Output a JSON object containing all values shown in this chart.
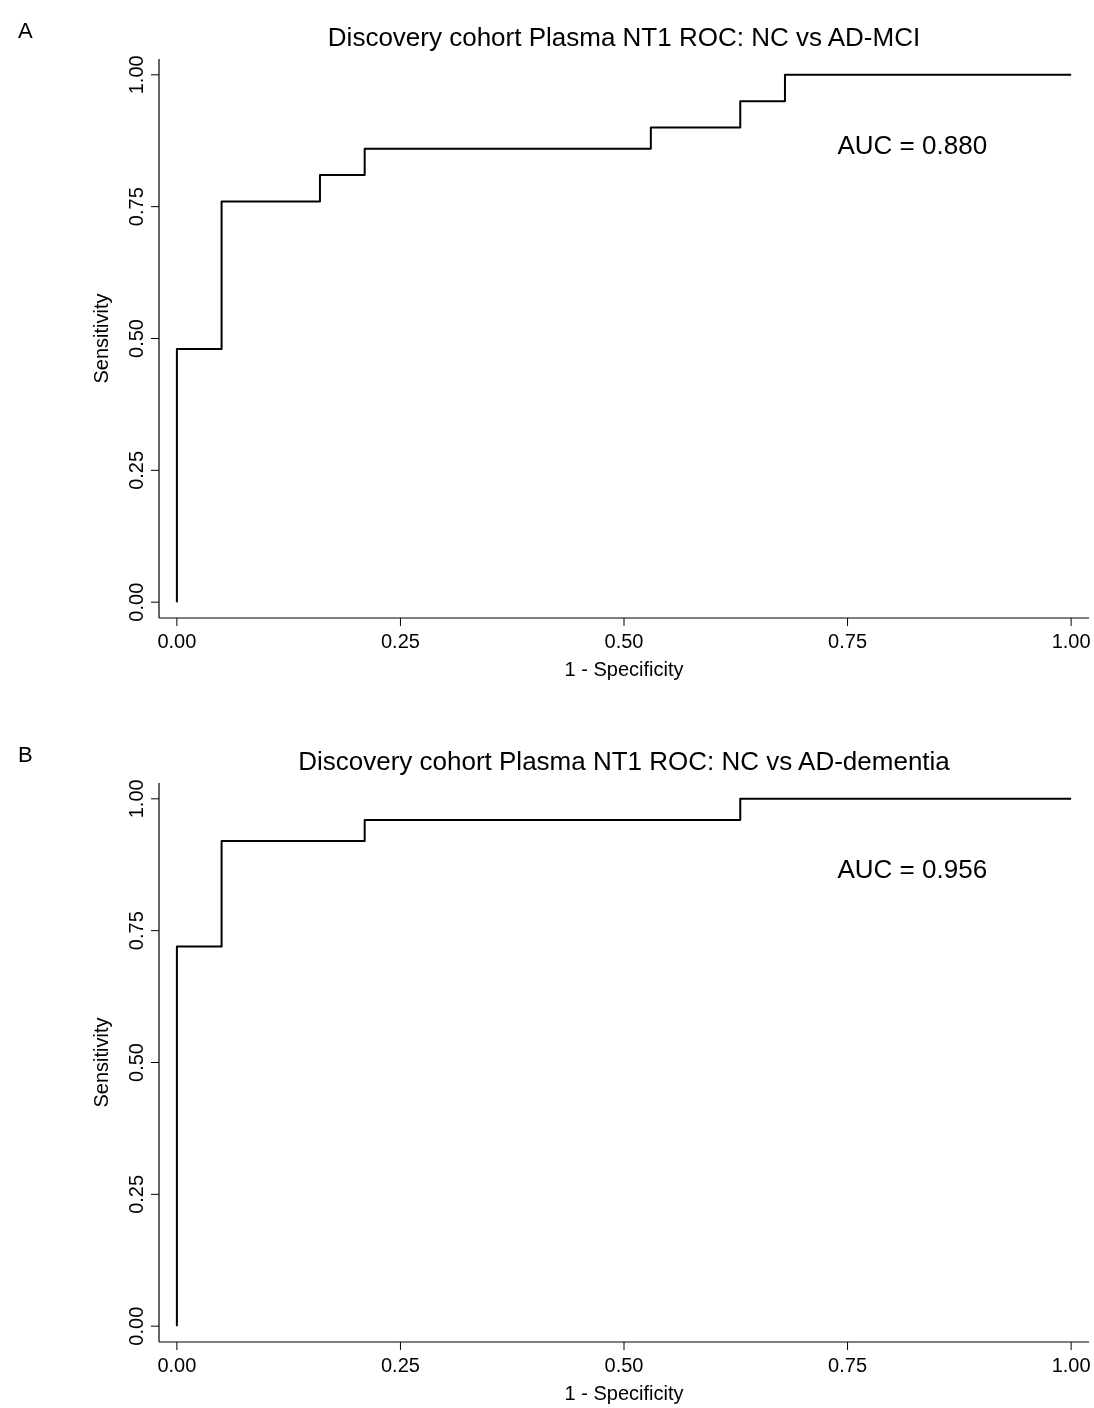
{
  "chart_data": [
    {
      "type": "step",
      "title": "Discovery cohort Plasma NT1 ROC: NC vs AD-MCI",
      "xlabel": "1 - Specificity",
      "ylabel": "Sensitivity",
      "annotations": [
        "A",
        "AUC = 0.880"
      ],
      "series": [
        {
          "color": "#000000",
          "x": [
            0,
            0,
            0.05,
            0.16,
            0.21,
            0.53,
            0.63,
            0.68,
            1
          ],
          "values": [
            0,
            0.48,
            0.76,
            0.81,
            0.86,
            0.9,
            0.95,
            1,
            1
          ]
        }
      ],
      "xlim": [
        -0.02,
        1.02
      ],
      "xticks": [
        {
          "value": 0,
          "label": "0.00"
        },
        {
          "value": 0.25,
          "label": "0.25"
        },
        {
          "value": 0.5,
          "label": "0.50"
        },
        {
          "value": 0.75,
          "label": "0.75"
        },
        {
          "value": 1,
          "label": "1.00"
        }
      ],
      "ylim": [
        -0.03,
        1.03
      ],
      "yticks": [
        {
          "value": 0,
          "label": "0.00"
        },
        {
          "value": 0.25,
          "label": "0.25"
        },
        {
          "value": 0.5,
          "label": "0.50"
        },
        {
          "value": 0.75,
          "label": "0.75"
        },
        {
          "value": 1,
          "label": "1.00"
        }
      ],
      "grid": false,
      "marker": "none",
      "line_style": "solid"
    },
    {
      "type": "step",
      "title": "Discovery cohort Plasma NT1 ROC: NC vs AD-dementia",
      "xlabel": "1 - Specificity",
      "ylabel": "Sensitivity",
      "annotations": [
        "B",
        "AUC = 0.956"
      ],
      "series": [
        {
          "color": "#000000",
          "x": [
            0,
            0,
            0.05,
            0.21,
            0.63,
            1
          ],
          "values": [
            0,
            0.72,
            0.92,
            0.96,
            1,
            1
          ]
        }
      ],
      "xlim": [
        -0.02,
        1.02
      ],
      "xticks": [
        {
          "value": 0,
          "label": "0.00"
        },
        {
          "value": 0.25,
          "label": "0.25"
        },
        {
          "value": 0.5,
          "label": "0.50"
        },
        {
          "value": 0.75,
          "label": "0.75"
        },
        {
          "value": 1,
          "label": "1.00"
        }
      ],
      "ylim": [
        -0.03,
        1.03
      ],
      "yticks": [
        {
          "value": 0,
          "label": "0.00"
        },
        {
          "value": 0.25,
          "label": "0.25"
        },
        {
          "value": 0.5,
          "label": "0.50"
        },
        {
          "value": 0.75,
          "label": "0.75"
        },
        {
          "value": 1,
          "label": "1.00"
        }
      ],
      "grid": false,
      "marker": "none",
      "line_style": "solid"
    }
  ]
}
